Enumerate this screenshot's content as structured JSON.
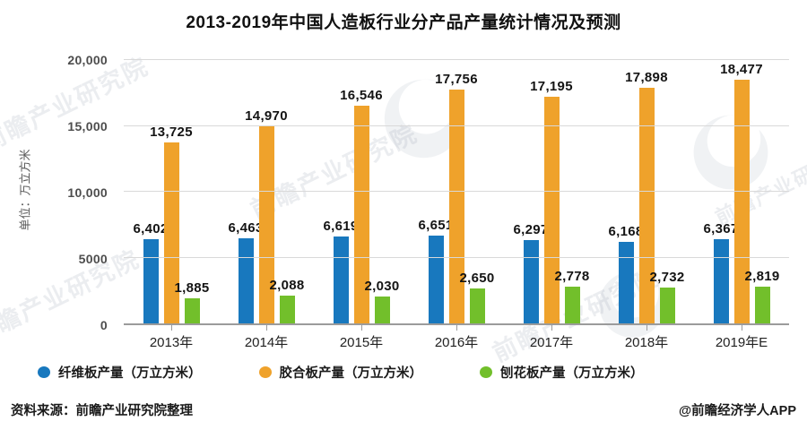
{
  "chart_data": {
    "type": "bar",
    "title": "2013-2019年中国人造板行业分产品产量统计情况及预测",
    "unit_label": "单位：万立方米",
    "categories": [
      "2013年",
      "2014年",
      "2015年",
      "2016年",
      "2017年",
      "2018年",
      "2019年E"
    ],
    "series": [
      {
        "name": "纤维板产量（万立方米）",
        "color": "#1878be",
        "values": [
          6402,
          6463,
          6619,
          6651,
          6297,
          6168,
          6367
        ]
      },
      {
        "name": "胶合板产量（万立方米）",
        "color": "#efa22b",
        "values": [
          13725,
          14970,
          16546,
          17756,
          17195,
          17898,
          18477
        ]
      },
      {
        "name": "刨花板产量（万立方米）",
        "color": "#72bf2b",
        "values": [
          1885,
          2088,
          2030,
          2650,
          2778,
          2732,
          2819
        ]
      }
    ],
    "ylim": [
      0,
      20000
    ],
    "yticks": [
      {
        "value": 0,
        "label": "0"
      },
      {
        "value": 5000,
        "label": "5000"
      },
      {
        "value": 10000,
        "label": "10,000"
      },
      {
        "value": 15000,
        "label": "15,000"
      },
      {
        "value": 20000,
        "label": "20,000"
      }
    ],
    "grid": true,
    "legend_position": "bottom"
  },
  "footer": {
    "source": "资料来源：前瞻产业研究院整理",
    "credit": "@前瞻经济学人APP"
  },
  "watermark": {
    "text": "前瞻产业研究院"
  }
}
